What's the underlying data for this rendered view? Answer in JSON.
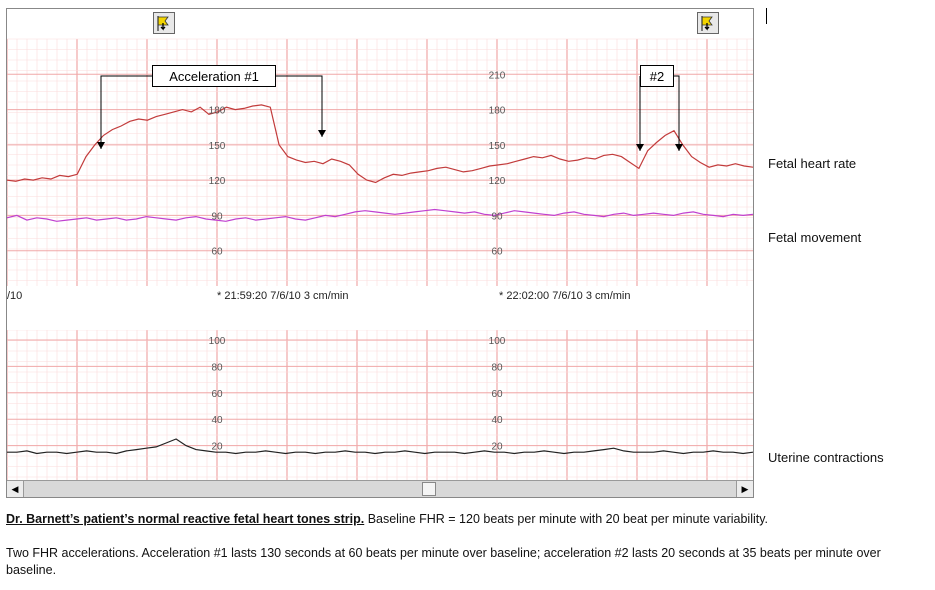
{
  "callouts": {
    "accel1": "Acceleration  #1",
    "accel2": "#2"
  },
  "fhr_ticks": [
    "210",
    "180",
    "150",
    "120",
    "90",
    "60"
  ],
  "toco_ticks": [
    "100",
    "80",
    "60",
    "40",
    "20"
  ],
  "timestamps": {
    "left_partial": "/10",
    "mark1": "* 21:59:20 7/6/10  3 cm/min",
    "mark2": "* 22:02:00 7/6/10  3 cm/min"
  },
  "side_labels": {
    "fhr": "Fetal heart rate",
    "movement": "Fetal movement",
    "contractions": "Uterine contractions"
  },
  "caption": {
    "title": "Dr. Barnett’s patient’s normal reactive fetal heart tones strip.",
    "line1": " Baseline FHR = 120 beats per minute with 20 beat per minute variability.",
    "line2": "Two FHR accelerations.  Acceleration #1 lasts 130 seconds  at 60 beats per minute over baseline; acceleration #2 lasts 20 seconds at 35 beats per minute over baseline."
  },
  "colors": {
    "grid_major": "#f0a8a8",
    "grid_minor": "#fbdcdc",
    "fhr_trace": "#c23b3b",
    "movement_trace": "#c040d0",
    "toco_trace": "#222222",
    "scroll_bg": "#d8d8d8"
  },
  "icons": {
    "toolbar_left": "marker-flag-icon",
    "toolbar_right": "marker-flag-icon"
  },
  "chart_data": {
    "type": "line",
    "y_range_fhr": [
      30,
      240
    ],
    "y_range_toco": [
      0,
      100
    ],
    "series": [
      {
        "name": "Fetal heart rate",
        "values": [
          120,
          119,
          121,
          120,
          122,
          121,
          124,
          123,
          125,
          140,
          150,
          158,
          163,
          166,
          170,
          172,
          171,
          174,
          176,
          178,
          180,
          178,
          182,
          176,
          178,
          182,
          180,
          181,
          183,
          184,
          182,
          150,
          140,
          137,
          135,
          136,
          134,
          138,
          136,
          133,
          125,
          120,
          118,
          122,
          125,
          124,
          126,
          127,
          128,
          130,
          131,
          129,
          127,
          128,
          130,
          132,
          133,
          134,
          136,
          138,
          140,
          139,
          141,
          138,
          136,
          137,
          139,
          138,
          141,
          142,
          140,
          135,
          130,
          145,
          152,
          158,
          162,
          150,
          140,
          135,
          131,
          133,
          132,
          134,
          132,
          131
        ]
      },
      {
        "name": "Fetal movement",
        "values": [
          88,
          90,
          86,
          88,
          87,
          85,
          86,
          87,
          88,
          86,
          87,
          88,
          86,
          87,
          89,
          88,
          87,
          86,
          88,
          89,
          87,
          86,
          85,
          87,
          88,
          86,
          87,
          88,
          89,
          87,
          86,
          88,
          90,
          89,
          91,
          93,
          94,
          93,
          92,
          91,
          92,
          93,
          94,
          95,
          94,
          93,
          92,
          93,
          91,
          90,
          92,
          94,
          93,
          92,
          91,
          90,
          92,
          93,
          91,
          90,
          89,
          91,
          92,
          90,
          91,
          92,
          91,
          90,
          92,
          93,
          91,
          90,
          89,
          91,
          90,
          91
        ]
      },
      {
        "name": "Uterine contractions",
        "values": [
          15,
          15,
          16,
          14,
          15,
          15,
          14,
          15,
          16,
          15,
          15,
          14,
          16,
          17,
          18,
          19,
          22,
          25,
          20,
          17,
          16,
          15,
          15,
          14,
          15,
          15,
          16,
          15,
          14,
          15,
          15,
          14,
          15,
          15,
          16,
          15,
          15,
          14,
          15,
          15,
          16,
          15,
          14,
          15,
          15,
          15,
          14,
          15,
          16,
          15,
          15,
          14,
          15,
          15,
          16,
          15,
          14,
          15,
          15,
          16,
          17,
          18,
          16,
          15,
          15,
          15,
          16,
          15,
          14,
          15,
          15,
          16,
          15,
          15,
          14,
          15
        ]
      }
    ]
  }
}
